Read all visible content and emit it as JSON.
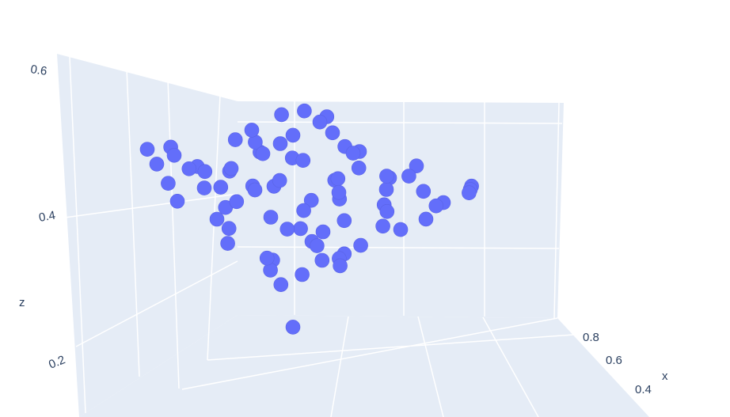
{
  "chart_data": {
    "type": "scatter",
    "dimensions": 3,
    "xlabel": "x",
    "zlabel": "z",
    "x_ticks": [
      "0.4",
      "0.6",
      "0.8"
    ],
    "z_ticks": [
      "0.2",
      "0.4",
      "0.6"
    ],
    "zlim": [
      0.15,
      0.62
    ],
    "grid": true,
    "marker_color": "#636efa",
    "background_color": "#e5ecf6",
    "grid_color": "#ffffff",
    "points": [
      [
        0.45,
        0.4,
        0.5
      ],
      [
        0.5,
        0.5,
        0.52
      ],
      [
        0.55,
        0.45,
        0.54
      ],
      [
        0.6,
        0.55,
        0.53
      ],
      [
        0.4,
        0.35,
        0.48
      ],
      [
        0.65,
        0.5,
        0.5
      ],
      [
        0.35,
        0.45,
        0.46
      ],
      [
        0.52,
        0.6,
        0.49
      ],
      [
        0.48,
        0.3,
        0.47
      ],
      [
        0.58,
        0.4,
        0.45
      ],
      [
        0.42,
        0.55,
        0.44
      ],
      [
        0.62,
        0.62,
        0.46
      ],
      [
        0.3,
        0.5,
        0.43
      ],
      [
        0.7,
        0.45,
        0.44
      ],
      [
        0.5,
        0.7,
        0.45
      ],
      [
        0.55,
        0.25,
        0.42
      ],
      [
        0.38,
        0.65,
        0.41
      ],
      [
        0.68,
        0.35,
        0.4
      ],
      [
        0.45,
        0.5,
        0.39
      ],
      [
        0.6,
        0.65,
        0.38
      ],
      [
        0.33,
        0.3,
        0.4
      ],
      [
        0.72,
        0.58,
        0.39
      ],
      [
        0.25,
        0.55,
        0.41
      ],
      [
        0.8,
        0.5,
        0.4
      ],
      [
        0.5,
        0.42,
        0.37
      ],
      [
        0.56,
        0.58,
        0.36
      ],
      [
        0.44,
        0.28,
        0.36
      ],
      [
        0.64,
        0.44,
        0.35
      ],
      [
        0.36,
        0.52,
        0.37
      ],
      [
        0.52,
        0.34,
        0.34
      ],
      [
        0.58,
        0.68,
        0.43
      ],
      [
        0.4,
        0.7,
        0.47
      ],
      [
        0.66,
        0.26,
        0.45
      ],
      [
        0.28,
        0.4,
        0.45
      ],
      [
        0.75,
        0.65,
        0.47
      ],
      [
        0.47,
        0.48,
        0.55
      ],
      [
        0.53,
        0.52,
        0.56
      ],
      [
        0.57,
        0.47,
        0.55
      ],
      [
        0.43,
        0.57,
        0.51
      ],
      [
        0.61,
        0.38,
        0.49
      ],
      [
        0.39,
        0.42,
        0.52
      ],
      [
        0.67,
        0.6,
        0.48
      ],
      [
        0.31,
        0.62,
        0.47
      ],
      [
        0.74,
        0.4,
        0.46
      ],
      [
        0.22,
        0.48,
        0.49
      ],
      [
        0.85,
        0.55,
        0.43
      ],
      [
        0.2,
        0.35,
        0.47
      ],
      [
        0.88,
        0.42,
        0.44
      ],
      [
        0.48,
        0.62,
        0.33
      ],
      [
        0.54,
        0.38,
        0.32
      ],
      [
        0.46,
        0.55,
        0.31
      ],
      [
        0.6,
        0.48,
        0.33
      ],
      [
        0.42,
        0.4,
        0.32
      ],
      [
        0.51,
        0.45,
        0.3
      ],
      [
        0.49,
        0.58,
        0.29
      ],
      [
        0.57,
        0.33,
        0.31
      ],
      [
        0.5,
        0.5,
        0.22
      ],
      [
        0.62,
        0.52,
        0.34
      ],
      [
        0.37,
        0.58,
        0.35
      ],
      [
        0.7,
        0.3,
        0.37
      ],
      [
        0.24,
        0.6,
        0.44
      ],
      [
        0.82,
        0.62,
        0.45
      ],
      [
        0.29,
        0.28,
        0.42
      ],
      [
        0.78,
        0.3,
        0.41
      ],
      [
        0.34,
        0.36,
        0.5
      ],
      [
        0.63,
        0.56,
        0.51
      ],
      [
        0.46,
        0.66,
        0.5
      ],
      [
        0.55,
        0.62,
        0.41
      ],
      [
        0.41,
        0.48,
        0.43
      ],
      [
        0.59,
        0.43,
        0.42
      ],
      [
        0.44,
        0.36,
        0.44
      ],
      [
        0.65,
        0.66,
        0.4
      ],
      [
        0.32,
        0.46,
        0.38
      ],
      [
        0.71,
        0.52,
        0.42
      ],
      [
        0.27,
        0.52,
        0.46
      ],
      [
        0.77,
        0.46,
        0.48
      ],
      [
        0.18,
        0.44,
        0.46
      ],
      [
        0.9,
        0.5,
        0.45
      ],
      [
        0.15,
        0.4,
        0.48
      ],
      [
        0.92,
        0.58,
        0.46
      ]
    ]
  }
}
